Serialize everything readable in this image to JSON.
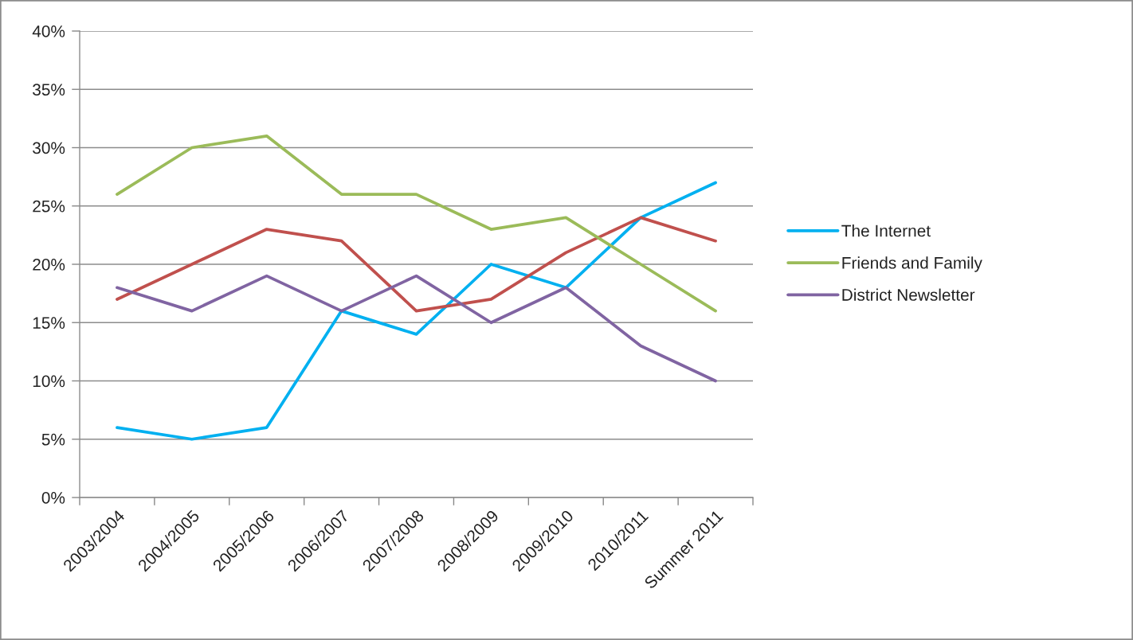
{
  "chart_data": {
    "type": "line",
    "categories": [
      "2003/2004",
      "2004/2005",
      "2005/2006",
      "2006/2007",
      "2007/2008",
      "2008/2009",
      "2009/2010",
      "2010/2011",
      "Summer 2011"
    ],
    "series": [
      {
        "name": "The Internet",
        "color": "#00b0f0",
        "values": [
          6,
          5,
          6,
          16,
          14,
          20,
          18,
          24,
          27
        ]
      },
      {
        "color": "#c0504d",
        "values": [
          17,
          20,
          23,
          22,
          16,
          17,
          21,
          24,
          22
        ]
      },
      {
        "name": "Friends and Family",
        "color": "#9bbb59",
        "values": [
          26,
          30,
          31,
          26,
          26,
          23,
          24,
          20,
          16
        ]
      },
      {
        "name": "District Newsletter",
        "color": "#8064a2",
        "values": [
          18,
          16,
          19,
          16,
          19,
          15,
          18,
          13,
          10
        ]
      }
    ],
    "ylim": [
      0,
      40
    ],
    "yticks": [
      {
        "value": 0,
        "label": "0%"
      },
      {
        "value": 5,
        "label": "5%"
      },
      {
        "value": 10,
        "label": "10%"
      },
      {
        "value": 15,
        "label": "15%"
      },
      {
        "value": 20,
        "label": "20%"
      },
      {
        "value": 25,
        "label": "25%"
      },
      {
        "value": 30,
        "label": "30%"
      },
      {
        "value": 35,
        "label": "35%"
      },
      {
        "value": 40,
        "label": "40%"
      }
    ],
    "grid": "y",
    "legend": "right",
    "line_style": "solid"
  }
}
